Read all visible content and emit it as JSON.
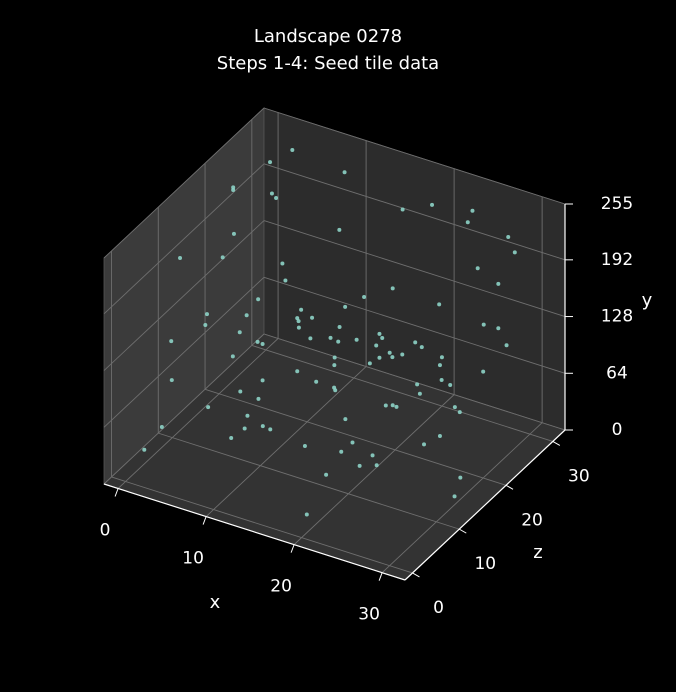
{
  "chart_data": {
    "type": "scatter3d",
    "title": "Landscape 0278",
    "subtitle": "Steps 1-4: Seed tile data",
    "x_label": "x",
    "y_label": "y",
    "z_label": "z",
    "color": "#8dd3c7",
    "xlim": [
      -1.6,
      32.6
    ],
    "zlim": [
      -1.6,
      32.6
    ],
    "ylim": [
      0,
      255
    ],
    "xticks": [
      0,
      10,
      20,
      30
    ],
    "zticks": [
      0,
      10,
      20,
      30
    ],
    "yticks": [
      0,
      64,
      128,
      192,
      255
    ],
    "grid": true,
    "x": [
      3,
      17,
      28,
      9,
      22,
      5,
      14,
      30,
      11,
      25,
      1,
      19,
      7,
      27,
      15,
      32,
      4,
      21,
      12,
      29,
      8,
      24,
      2,
      16,
      31,
      10,
      26,
      6,
      18,
      23,
      13,
      0,
      20,
      28,
      9,
      14,
      3,
      25,
      30,
      11,
      17,
      5,
      22,
      7,
      27,
      1,
      19,
      12,
      31,
      24,
      8,
      15,
      29,
      4,
      21,
      10,
      26,
      2,
      18,
      13,
      32,
      6,
      23,
      16,
      0,
      28,
      11,
      20,
      3,
      25,
      9,
      30,
      14,
      7,
      22,
      17,
      1,
      27,
      12,
      19,
      5,
      24,
      31,
      8,
      15,
      2,
      26,
      10,
      21,
      13,
      29,
      4,
      18,
      6,
      23,
      16,
      0,
      32,
      11,
      20
    ],
    "z": [
      12,
      5,
      27,
      30,
      8,
      19,
      2,
      15,
      24,
      10,
      29,
      3,
      21,
      13,
      31,
      7,
      17,
      26,
      0,
      22,
      11,
      28,
      6,
      16,
      4,
      25,
      14,
      20,
      9,
      32,
      1,
      23,
      18,
      27,
      6,
      12,
      30,
      3,
      20,
      25,
      15,
      8,
      29,
      19,
      2,
      24,
      10,
      31,
      5,
      14,
      22,
      0,
      17,
      26,
      9,
      28,
      13,
      4,
      21,
      32,
      7,
      18,
      11,
      27,
      23,
      1,
      16,
      30,
      6,
      20,
      14,
      25,
      3,
      10,
      28,
      19,
      8,
      31,
      22,
      5,
      15,
      29,
      12,
      2,
      24,
      17,
      9,
      26,
      0,
      21,
      13,
      30,
      6,
      18,
      11,
      27,
      4,
      23,
      16,
      7
    ],
    "values": [
      34,
      210,
      128,
      77,
      190,
      15,
      240,
      99,
      56,
      170,
      220,
      8,
      145,
      63,
      201,
      118,
      30,
      250,
      87,
      160,
      45,
      230,
      135,
      5,
      188,
      70,
      112,
      245,
      20,
      155,
      96,
      215,
      60,
      178,
      140,
      25,
      235,
      82,
      120,
      195,
      50,
      165,
      10,
      248,
      105,
      72,
      185,
      38,
      225,
      150,
      90,
      205,
      12,
      130,
      66,
      242,
      175,
      48,
      115,
      28,
      198,
      85,
      158,
      3,
      218,
      102,
      140,
      55,
      232,
      180,
      18,
      125,
      92,
      252,
      40,
      168,
      78,
      208,
      35,
      148,
      110,
      238,
      22,
      192,
      62,
      175,
      122,
      6,
      228,
      95,
      142,
      58,
      212,
      44,
      185,
      135,
      16,
      246,
      80,
      160
    ]
  }
}
